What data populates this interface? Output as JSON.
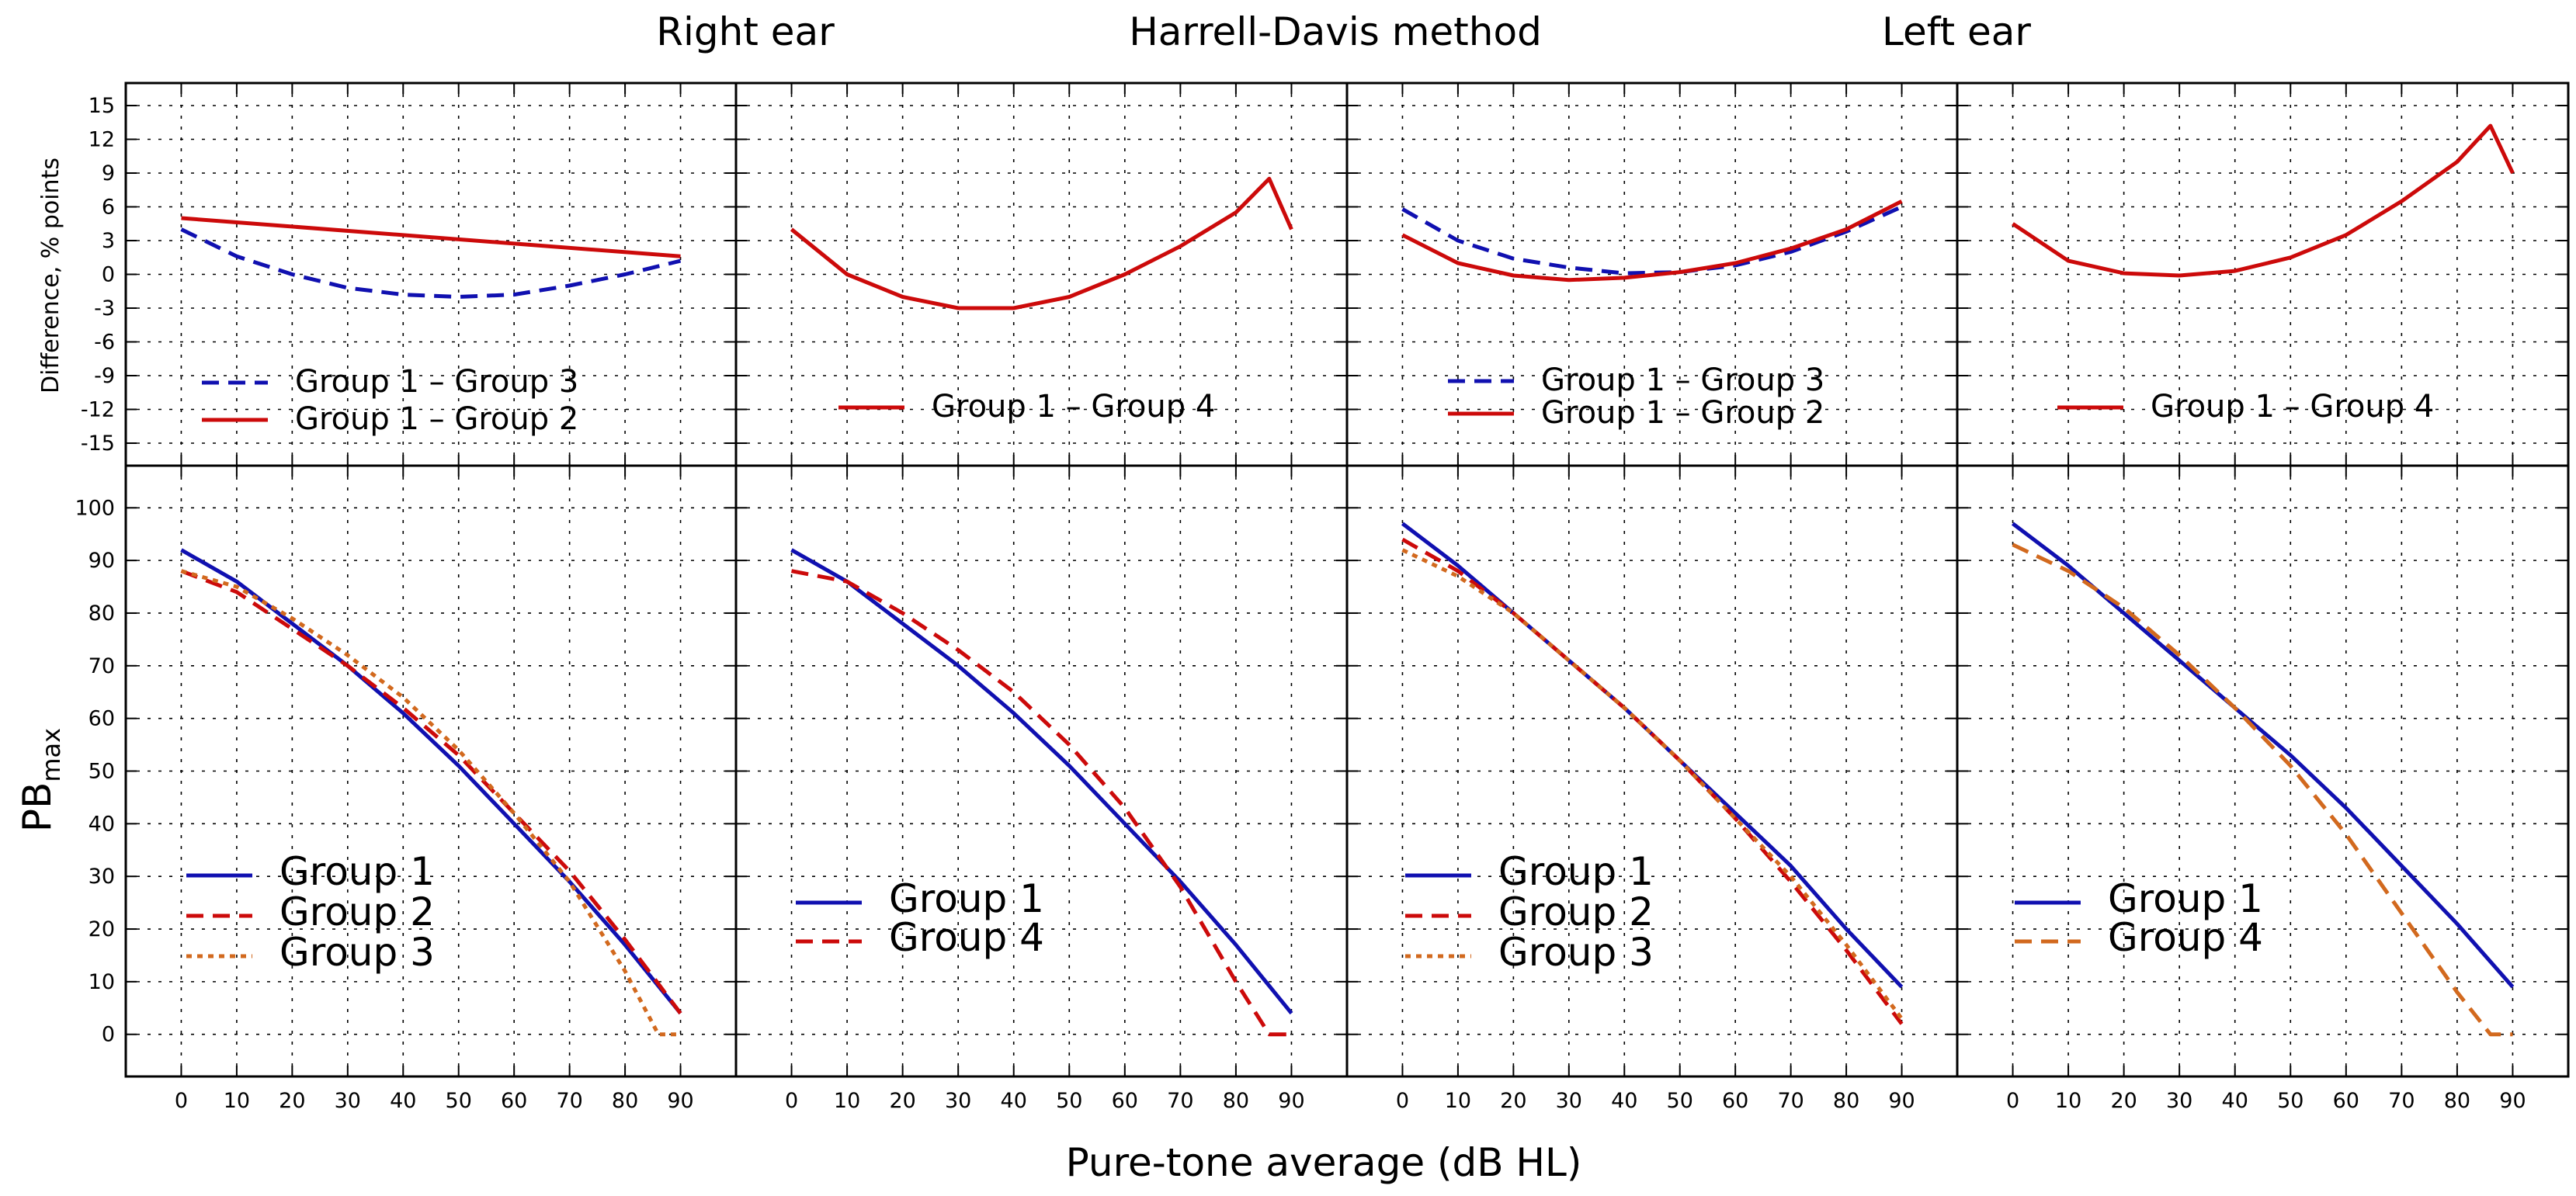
{
  "titles": {
    "left": "Right ear",
    "center": "Harrell-Davis method",
    "right": "Left ear"
  },
  "xlabel": "Pure-tone average (dB HL)",
  "ylabel_top": "Difference, % points",
  "ylabel_bottom_main": "PB",
  "ylabel_bottom_sub": "max",
  "colors": {
    "blue": "#1010b0",
    "red": "#cc0a0a",
    "orange": "#d2691e"
  },
  "chart_data": [
    {
      "type": "line",
      "panel": "top",
      "ear": "Right ear",
      "comparison": "Groups 1-3",
      "xlim": [
        -10,
        100
      ],
      "ylim": [
        -17,
        17
      ],
      "xticks": [
        0,
        10,
        20,
        30,
        40,
        50,
        60,
        70,
        80,
        90
      ],
      "yticks": [
        -15,
        -12,
        -9,
        -6,
        -3,
        0,
        3,
        6,
        9,
        12,
        15
      ],
      "series": [
        {
          "name": "Group 1 – Group 3",
          "style": "dashed",
          "color": "blue",
          "x": [
            0,
            10,
            20,
            30,
            40,
            50,
            60,
            70,
            80,
            90
          ],
          "y": [
            4.0,
            1.6,
            0.0,
            -1.2,
            -1.8,
            -2.0,
            -1.8,
            -1.0,
            0.0,
            1.2
          ]
        },
        {
          "name": "Group 1 – Group 2",
          "style": "solid",
          "color": "red",
          "x": [
            0,
            90
          ],
          "y": [
            5.0,
            1.6
          ]
        }
      ]
    },
    {
      "type": "line",
      "panel": "top",
      "ear": "Right ear",
      "comparison": "Groups 1 and 4",
      "xlim": [
        -10,
        100
      ],
      "ylim": [
        -17,
        17
      ],
      "xticks": [
        0,
        10,
        20,
        30,
        40,
        50,
        60,
        70,
        80,
        90
      ],
      "yticks": [
        -15,
        -12,
        -9,
        -6,
        -3,
        0,
        3,
        6,
        9,
        12,
        15
      ],
      "series": [
        {
          "name": "Group 1 – Group 4",
          "style": "solid",
          "color": "red",
          "x": [
            0,
            10,
            20,
            30,
            40,
            50,
            60,
            70,
            80,
            86,
            90
          ],
          "y": [
            4.0,
            0.0,
            -2.0,
            -3.0,
            -3.0,
            -2.0,
            0.0,
            2.5,
            5.5,
            8.5,
            4.0
          ]
        }
      ]
    },
    {
      "type": "line",
      "panel": "top",
      "ear": "Left ear",
      "comparison": "Groups 1-3",
      "xlim": [
        -10,
        100
      ],
      "ylim": [
        -17,
        17
      ],
      "xticks": [
        0,
        10,
        20,
        30,
        40,
        50,
        60,
        70,
        80,
        90
      ],
      "yticks": [
        -15,
        -12,
        -9,
        -6,
        -3,
        0,
        3,
        6,
        9,
        12,
        15
      ],
      "series": [
        {
          "name": "Group 1 – Group 3",
          "style": "dashed",
          "color": "blue",
          "x": [
            0,
            10,
            20,
            30,
            40,
            50,
            60,
            70,
            80,
            90
          ],
          "y": [
            5.8,
            3.0,
            1.4,
            0.6,
            0.1,
            0.2,
            0.8,
            2.0,
            3.8,
            6.0
          ]
        },
        {
          "name": "Group 1 – Group 2",
          "style": "solid",
          "color": "red",
          "x": [
            0,
            10,
            20,
            30,
            40,
            50,
            60,
            70,
            80,
            90
          ],
          "y": [
            3.5,
            1.0,
            -0.1,
            -0.5,
            -0.3,
            0.2,
            1.0,
            2.3,
            4.0,
            6.5
          ]
        }
      ]
    },
    {
      "type": "line",
      "panel": "top",
      "ear": "Left ear",
      "comparison": "Groups 1 and 4",
      "xlim": [
        -10,
        100
      ],
      "ylim": [
        -17,
        17
      ],
      "xticks": [
        0,
        10,
        20,
        30,
        40,
        50,
        60,
        70,
        80,
        90
      ],
      "yticks": [
        -15,
        -12,
        -9,
        -6,
        -3,
        0,
        3,
        6,
        9,
        12,
        15
      ],
      "series": [
        {
          "name": "Group 1 – Group 4",
          "style": "solid",
          "color": "red",
          "x": [
            0,
            10,
            20,
            30,
            40,
            50,
            60,
            70,
            80,
            86,
            90
          ],
          "y": [
            4.5,
            1.2,
            0.1,
            -0.1,
            0.3,
            1.5,
            3.5,
            6.5,
            10.0,
            13.2,
            9.0
          ]
        }
      ]
    },
    {
      "type": "line",
      "panel": "bottom",
      "ear": "Right ear",
      "comparison": "Groups 1-3",
      "xlim": [
        -10,
        100
      ],
      "ylim": [
        -8,
        108
      ],
      "xticks": [
        0,
        10,
        20,
        30,
        40,
        50,
        60,
        70,
        80,
        90
      ],
      "yticks": [
        0,
        10,
        20,
        30,
        40,
        50,
        60,
        70,
        80,
        90,
        100
      ],
      "series": [
        {
          "name": "Group 1",
          "style": "solid",
          "color": "blue",
          "x": [
            0,
            10,
            20,
            30,
            40,
            50,
            60,
            70,
            80,
            90
          ],
          "y": [
            92,
            86,
            78,
            70,
            61,
            51,
            40,
            29,
            17,
            4
          ]
        },
        {
          "name": "Group 2",
          "style": "dashed",
          "color": "red",
          "x": [
            0,
            10,
            20,
            30,
            40,
            50,
            60,
            70,
            80,
            90
          ],
          "y": [
            88,
            84,
            77,
            70,
            62,
            53,
            42,
            31,
            18,
            4
          ]
        },
        {
          "name": "Group 3",
          "style": "dotted",
          "color": "orange",
          "x": [
            0,
            10,
            20,
            30,
            40,
            50,
            60,
            70,
            80,
            86,
            90
          ],
          "y": [
            88,
            85,
            79,
            72,
            64,
            54,
            42,
            29,
            12,
            0,
            0
          ]
        }
      ]
    },
    {
      "type": "line",
      "panel": "bottom",
      "ear": "Right ear",
      "comparison": "Groups 1 and 4",
      "xlim": [
        -10,
        100
      ],
      "ylim": [
        -8,
        108
      ],
      "xticks": [
        0,
        10,
        20,
        30,
        40,
        50,
        60,
        70,
        80,
        90
      ],
      "yticks": [
        0,
        10,
        20,
        30,
        40,
        50,
        60,
        70,
        80,
        90,
        100
      ],
      "series": [
        {
          "name": "Group 1",
          "style": "solid",
          "color": "blue",
          "x": [
            0,
            10,
            20,
            30,
            40,
            50,
            60,
            70,
            80,
            90
          ],
          "y": [
            92,
            86,
            78,
            70,
            61,
            51,
            40,
            29,
            17,
            4
          ]
        },
        {
          "name": "Group 4",
          "style": "dashed",
          "color": "red",
          "x": [
            0,
            10,
            20,
            30,
            40,
            50,
            60,
            70,
            80,
            86,
            90
          ],
          "y": [
            88,
            86,
            80,
            73,
            65,
            55,
            43,
            28,
            10,
            0,
            0
          ]
        }
      ]
    },
    {
      "type": "line",
      "panel": "bottom",
      "ear": "Left ear",
      "comparison": "Groups 1-3",
      "xlim": [
        -10,
        100
      ],
      "ylim": [
        -8,
        108
      ],
      "xticks": [
        0,
        10,
        20,
        30,
        40,
        50,
        60,
        70,
        80,
        90
      ],
      "yticks": [
        0,
        10,
        20,
        30,
        40,
        50,
        60,
        70,
        80,
        90,
        100
      ],
      "series": [
        {
          "name": "Group 1",
          "style": "solid",
          "color": "blue",
          "x": [
            0,
            10,
            20,
            30,
            40,
            50,
            60,
            70,
            80,
            90
          ],
          "y": [
            97,
            89,
            80,
            71,
            62,
            52,
            42,
            32,
            20,
            9
          ]
        },
        {
          "name": "Group 2",
          "style": "dashed",
          "color": "red",
          "x": [
            0,
            10,
            20,
            30,
            40,
            50,
            60,
            70,
            80,
            90
          ],
          "y": [
            94,
            88,
            80,
            71,
            62,
            52,
            41,
            29,
            16,
            2
          ]
        },
        {
          "name": "Group 3",
          "style": "dotted",
          "color": "orange",
          "x": [
            0,
            10,
            20,
            30,
            40,
            50,
            60,
            70,
            80,
            90
          ],
          "y": [
            92,
            87,
            80,
            71,
            62,
            52,
            41,
            30,
            17,
            3
          ]
        }
      ]
    },
    {
      "type": "line",
      "panel": "bottom",
      "ear": "Left ear",
      "comparison": "Groups 1 and 4",
      "xlim": [
        -10,
        100
      ],
      "ylim": [
        -8,
        108
      ],
      "xticks": [
        0,
        10,
        20,
        30,
        40,
        50,
        60,
        70,
        80,
        90
      ],
      "yticks": [
        0,
        10,
        20,
        30,
        40,
        50,
        60,
        70,
        80,
        90,
        100
      ],
      "series": [
        {
          "name": "Group 1",
          "style": "solid",
          "color": "blue",
          "x": [
            0,
            10,
            20,
            30,
            40,
            50,
            60,
            70,
            80,
            90
          ],
          "y": [
            97,
            89,
            80,
            71,
            62,
            53,
            43,
            32,
            21,
            9
          ]
        },
        {
          "name": "Group 4",
          "style": "dashed",
          "color": "orange",
          "x": [
            0,
            10,
            20,
            30,
            40,
            50,
            60,
            70,
            80,
            86,
            90
          ],
          "y": [
            93,
            88,
            81,
            72,
            62,
            51,
            38,
            23,
            8,
            0,
            0
          ]
        }
      ]
    }
  ]
}
